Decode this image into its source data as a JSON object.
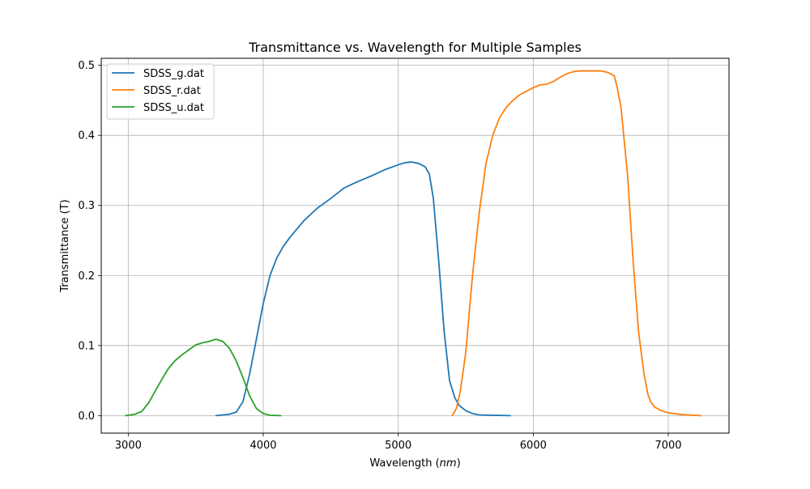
{
  "chart_data": {
    "type": "line",
    "title": "Transmittance vs. Wavelength for Multiple Samples",
    "xlabel_main": "Wavelength (",
    "xlabel_italic": "nm",
    "xlabel_end": ")",
    "ylabel": "Transmittance (T)",
    "xlim": [
      2800,
      7450
    ],
    "ylim": [
      -0.025,
      0.51
    ],
    "xticks": [
      3000,
      4000,
      5000,
      6000,
      7000
    ],
    "xtick_labels": [
      "3000",
      "4000",
      "5000",
      "6000",
      "7000"
    ],
    "yticks": [
      0.0,
      0.1,
      0.2,
      0.3,
      0.4,
      0.5
    ],
    "ytick_labels": [
      "0.0",
      "0.1",
      "0.2",
      "0.3",
      "0.4",
      "0.5"
    ],
    "grid": true,
    "legend_position": "upper-left",
    "series": [
      {
        "name": "SDSS_g.dat",
        "color": "#1f77b4",
        "x": [
          3650,
          3750,
          3800,
          3850,
          3900,
          3950,
          4000,
          4050,
          4100,
          4150,
          4200,
          4300,
          4400,
          4500,
          4600,
          4700,
          4800,
          4900,
          5000,
          5050,
          5100,
          5150,
          5200,
          5230,
          5260,
          5300,
          5340,
          5380,
          5420,
          5450,
          5500,
          5550,
          5600,
          5700,
          5830
        ],
        "y": [
          0.0,
          0.002,
          0.005,
          0.02,
          0.06,
          0.11,
          0.16,
          0.2,
          0.225,
          0.242,
          0.255,
          0.278,
          0.296,
          0.31,
          0.325,
          0.334,
          0.342,
          0.351,
          0.358,
          0.361,
          0.362,
          0.36,
          0.355,
          0.345,
          0.31,
          0.22,
          0.12,
          0.05,
          0.025,
          0.015,
          0.007,
          0.003,
          0.001,
          0.0005,
          0.0
        ]
      },
      {
        "name": "SDSS_r.dat",
        "color": "#ff7f0e",
        "x": [
          5400,
          5430,
          5460,
          5500,
          5550,
          5600,
          5650,
          5700,
          5750,
          5800,
          5850,
          5900,
          6000,
          6050,
          6100,
          6150,
          6200,
          6250,
          6300,
          6350,
          6400,
          6500,
          6550,
          6600,
          6620,
          6650,
          6700,
          6740,
          6780,
          6820,
          6850,
          6870,
          6900,
          6950,
          7000,
          7100,
          7240
        ],
        "y": [
          0.0,
          0.01,
          0.035,
          0.09,
          0.2,
          0.29,
          0.36,
          0.4,
          0.425,
          0.44,
          0.45,
          0.458,
          0.468,
          0.472,
          0.473,
          0.477,
          0.483,
          0.488,
          0.491,
          0.492,
          0.492,
          0.492,
          0.49,
          0.485,
          0.47,
          0.44,
          0.34,
          0.22,
          0.12,
          0.06,
          0.03,
          0.02,
          0.012,
          0.007,
          0.004,
          0.0015,
          0.0
        ]
      },
      {
        "name": "SDSS_u.dat",
        "color": "#2ca02c",
        "x": [
          2980,
          3050,
          3100,
          3150,
          3200,
          3250,
          3300,
          3350,
          3400,
          3450,
          3500,
          3550,
          3600,
          3650,
          3700,
          3750,
          3800,
          3850,
          3900,
          3950,
          4000,
          4050,
          4130
        ],
        "y": [
          0.0,
          0.002,
          0.006,
          0.018,
          0.035,
          0.052,
          0.068,
          0.079,
          0.087,
          0.094,
          0.101,
          0.104,
          0.106,
          0.109,
          0.106,
          0.096,
          0.078,
          0.054,
          0.028,
          0.01,
          0.003,
          0.0005,
          0.0
        ]
      }
    ]
  }
}
